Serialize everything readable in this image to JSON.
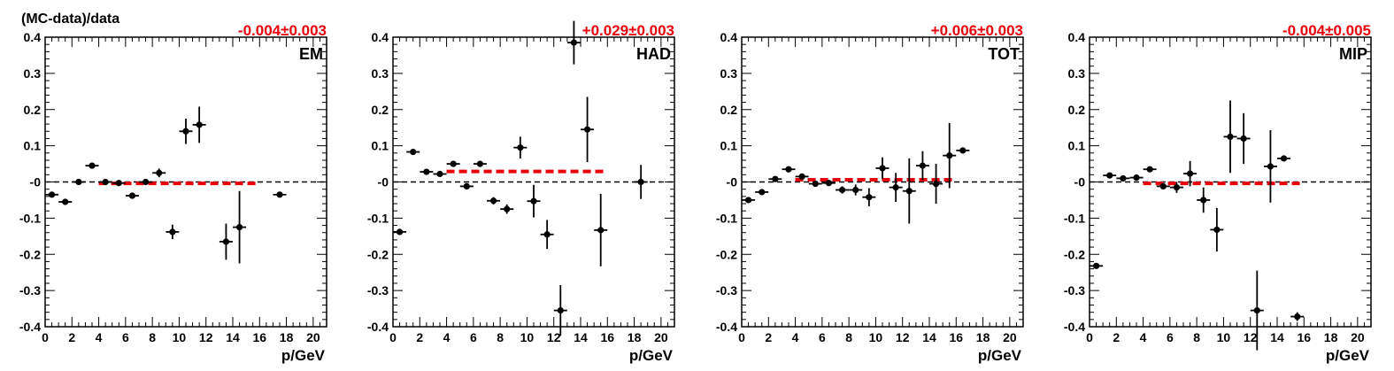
{
  "figure": {
    "ylabel": "(MC-data)/data",
    "xlabel": "p/GeV"
  },
  "colors": {
    "fit": "#e8000b",
    "points": "#000000",
    "reference": "#000000"
  },
  "chart_data": [
    {
      "type": "scatter",
      "label": "EM",
      "fit_text": "-0.004±0.003",
      "xlim": [
        0,
        21
      ],
      "ylim": [
        -0.4,
        0.4
      ],
      "xticks": [
        "0",
        "2",
        "4",
        "6",
        "8",
        "10",
        "12",
        "14",
        "16",
        "18",
        "20"
      ],
      "yticks": [
        "-0.4",
        "-0.3",
        "-0.2",
        "-0.1",
        "-0",
        "0.1",
        "0.2",
        "0.3",
        "0.4"
      ],
      "fit_range": [
        4,
        16
      ],
      "fit_value": -0.004,
      "points": [
        {
          "x": 0.5,
          "y": -0.035,
          "err": 0.008
        },
        {
          "x": 1.5,
          "y": -0.055,
          "err": 0.006
        },
        {
          "x": 2.5,
          "y": 0.0,
          "err": 0.005
        },
        {
          "x": 3.5,
          "y": 0.045,
          "err": 0.006
        },
        {
          "x": 4.5,
          "y": 0.0,
          "err": 0.005
        },
        {
          "x": 5.5,
          "y": -0.003,
          "err": 0.005
        },
        {
          "x": 6.5,
          "y": -0.038,
          "err": 0.008
        },
        {
          "x": 7.5,
          "y": 0.0,
          "err": 0.006
        },
        {
          "x": 8.5,
          "y": 0.025,
          "err": 0.012
        },
        {
          "x": 9.5,
          "y": -0.138,
          "err": 0.02
        },
        {
          "x": 10.5,
          "y": 0.14,
          "err": 0.035
        },
        {
          "x": 11.5,
          "y": 0.158,
          "err": 0.05
        },
        {
          "x": 13.5,
          "y": -0.165,
          "err": 0.05
        },
        {
          "x": 14.5,
          "y": -0.125,
          "err": 0.1
        },
        {
          "x": 17.5,
          "y": -0.035,
          "err": 0.006
        }
      ]
    },
    {
      "type": "scatter",
      "label": "HAD",
      "fit_text": "+0.029±0.003",
      "xlim": [
        0,
        21
      ],
      "ylim": [
        -0.4,
        0.4
      ],
      "xticks": [
        "0",
        "2",
        "4",
        "6",
        "8",
        "10",
        "12",
        "14",
        "16",
        "18",
        "20"
      ],
      "yticks": [
        "-0.4",
        "-0.3",
        "-0.2",
        "-0.1",
        "-0",
        "0.1",
        "0.2",
        "0.3",
        "0.4"
      ],
      "fit_range": [
        4,
        16
      ],
      "fit_value": 0.029,
      "points": [
        {
          "x": 0.5,
          "y": -0.138,
          "err": 0.005
        },
        {
          "x": 1.5,
          "y": 0.083,
          "err": 0.006
        },
        {
          "x": 2.5,
          "y": 0.028,
          "err": 0.005
        },
        {
          "x": 3.5,
          "y": 0.022,
          "err": 0.005
        },
        {
          "x": 4.5,
          "y": 0.05,
          "err": 0.006
        },
        {
          "x": 5.5,
          "y": -0.012,
          "err": 0.007
        },
        {
          "x": 6.5,
          "y": 0.05,
          "err": 0.007
        },
        {
          "x": 7.5,
          "y": -0.052,
          "err": 0.01
        },
        {
          "x": 8.5,
          "y": -0.075,
          "err": 0.013
        },
        {
          "x": 9.5,
          "y": 0.095,
          "err": 0.03
        },
        {
          "x": 10.5,
          "y": -0.053,
          "err": 0.045
        },
        {
          "x": 11.5,
          "y": -0.145,
          "err": 0.04
        },
        {
          "x": 12.5,
          "y": -0.355,
          "err": 0.07
        },
        {
          "x": 13.5,
          "y": 0.385,
          "err": 0.06
        },
        {
          "x": 14.5,
          "y": 0.145,
          "err": 0.09
        },
        {
          "x": 15.5,
          "y": -0.133,
          "err": 0.1
        },
        {
          "x": 18.5,
          "y": 0.0,
          "err": 0.047
        }
      ]
    },
    {
      "type": "scatter",
      "label": "TOT",
      "fit_text": "+0.006±0.003",
      "xlim": [
        0,
        21
      ],
      "ylim": [
        -0.4,
        0.4
      ],
      "xticks": [
        "0",
        "2",
        "4",
        "6",
        "8",
        "10",
        "12",
        "14",
        "16",
        "18",
        "20"
      ],
      "yticks": [
        "-0.4",
        "-0.3",
        "-0.2",
        "-0.1",
        "-0",
        "0.1",
        "0.2",
        "0.3",
        "0.4"
      ],
      "fit_range": [
        4,
        16
      ],
      "fit_value": 0.006,
      "points": [
        {
          "x": 0.5,
          "y": -0.05,
          "err": 0.006
        },
        {
          "x": 1.5,
          "y": -0.028,
          "err": 0.005
        },
        {
          "x": 2.5,
          "y": 0.008,
          "err": 0.005
        },
        {
          "x": 3.5,
          "y": 0.035,
          "err": 0.005
        },
        {
          "x": 4.5,
          "y": 0.015,
          "err": 0.005
        },
        {
          "x": 5.5,
          "y": -0.005,
          "err": 0.006
        },
        {
          "x": 6.5,
          "y": -0.003,
          "err": 0.006
        },
        {
          "x": 7.5,
          "y": -0.022,
          "err": 0.01
        },
        {
          "x": 8.5,
          "y": -0.022,
          "err": 0.015
        },
        {
          "x": 9.5,
          "y": -0.042,
          "err": 0.025
        },
        {
          "x": 10.5,
          "y": 0.038,
          "err": 0.03
        },
        {
          "x": 11.5,
          "y": -0.015,
          "err": 0.04
        },
        {
          "x": 12.5,
          "y": -0.025,
          "err": 0.09
        },
        {
          "x": 13.5,
          "y": 0.045,
          "err": 0.04
        },
        {
          "x": 14.5,
          "y": -0.005,
          "err": 0.055
        },
        {
          "x": 15.5,
          "y": 0.073,
          "err": 0.09
        },
        {
          "x": 16.5,
          "y": 0.087,
          "err": 0.006
        }
      ]
    },
    {
      "type": "scatter",
      "label": "MIP",
      "fit_text": "-0.004±0.005",
      "xlim": [
        0,
        21
      ],
      "ylim": [
        -0.4,
        0.4
      ],
      "xticks": [
        "0",
        "2",
        "4",
        "6",
        "8",
        "10",
        "12",
        "14",
        "16",
        "18",
        "20"
      ],
      "yticks": [
        "-0.4",
        "-0.3",
        "-0.2",
        "-0.1",
        "-0",
        "0.1",
        "0.2",
        "0.3",
        "0.4"
      ],
      "fit_range": [
        4,
        16
      ],
      "fit_value": -0.004,
      "points": [
        {
          "x": 0.5,
          "y": -0.232,
          "err": 0.006
        },
        {
          "x": 1.5,
          "y": 0.018,
          "err": 0.005
        },
        {
          "x": 2.5,
          "y": 0.01,
          "err": 0.005
        },
        {
          "x": 3.5,
          "y": 0.012,
          "err": 0.005
        },
        {
          "x": 4.5,
          "y": 0.035,
          "err": 0.006
        },
        {
          "x": 5.5,
          "y": -0.012,
          "err": 0.006
        },
        {
          "x": 6.5,
          "y": -0.015,
          "err": 0.015
        },
        {
          "x": 7.5,
          "y": 0.023,
          "err": 0.035
        },
        {
          "x": 8.5,
          "y": -0.05,
          "err": 0.035
        },
        {
          "x": 9.5,
          "y": -0.132,
          "err": 0.06
        },
        {
          "x": 10.5,
          "y": 0.125,
          "err": 0.1
        },
        {
          "x": 11.5,
          "y": 0.12,
          "err": 0.07
        },
        {
          "x": 12.5,
          "y": -0.355,
          "err": 0.11
        },
        {
          "x": 13.5,
          "y": 0.043,
          "err": 0.1
        },
        {
          "x": 14.5,
          "y": 0.065,
          "err": 0.005
        },
        {
          "x": 15.5,
          "y": -0.372,
          "err": 0.012
        }
      ]
    }
  ]
}
